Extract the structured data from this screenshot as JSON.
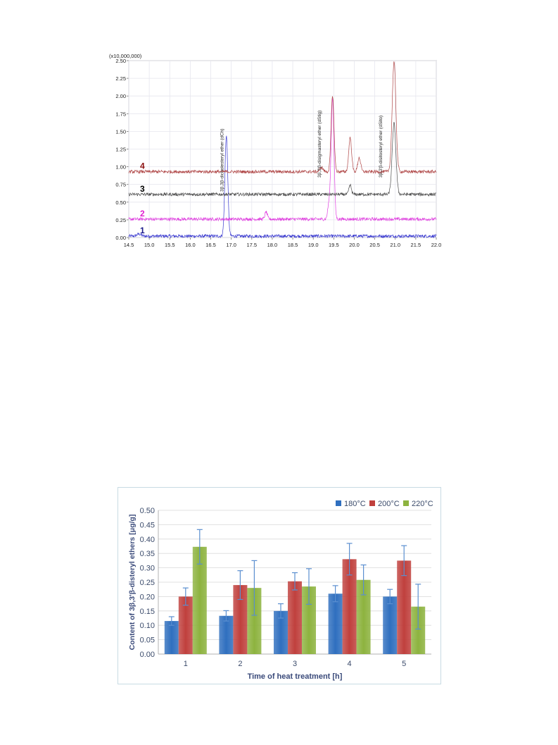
{
  "chart_data": [
    {
      "type": "line",
      "title": "",
      "xlabel": "",
      "ylabel": "",
      "y_multiplier_label": "(x10,000,000)",
      "xlim": [
        14.5,
        22.0
      ],
      "ylim": [
        0.0,
        2.5
      ],
      "x_ticks": [
        "14.5",
        "15.0",
        "15.5",
        "16.0",
        "16.5",
        "17.0",
        "17.5",
        "18.0",
        "18.5",
        "19.0",
        "19.5",
        "20.0",
        "20.5",
        "21.0",
        "21.5",
        "22.0"
      ],
      "y_ticks": [
        "0.00",
        "0.25",
        "0.50",
        "0.75",
        "1.00",
        "1.25",
        "1.50",
        "1.75",
        "2.00",
        "2.25",
        "2.50"
      ],
      "grid": true,
      "series": [
        {
          "name": "1",
          "color": "#3a3ad0",
          "label_color": "#1a1a8a",
          "baseline": 0.02,
          "peaks": [
            {
              "x": 16.88,
              "h": 1.42,
              "w": 0.035
            },
            {
              "x": 14.75,
              "h": 0.03,
              "w": 0.05
            }
          ]
        },
        {
          "name": "2",
          "color": "#e040e0",
          "label_color": "#e020d0",
          "baseline": 0.26,
          "peaks": [
            {
              "x": 17.85,
              "h": 0.1,
              "w": 0.03
            },
            {
              "x": 19.47,
              "h": 1.72,
              "w": 0.035
            },
            {
              "x": 19.38,
              "h": 0.2,
              "w": 0.03
            }
          ]
        },
        {
          "name": "3",
          "color": "#505050",
          "label_color": "#000000",
          "baseline": 0.61,
          "peaks": [
            {
              "x": 19.9,
              "h": 0.13,
              "w": 0.03
            },
            {
              "x": 20.97,
              "h": 1.0,
              "w": 0.045
            }
          ]
        },
        {
          "name": "4",
          "color": "#b04848",
          "label_color": "#8b1010",
          "baseline": 0.93,
          "peaks": [
            {
              "x": 19.2,
              "h": 0.06,
              "w": 0.04
            },
            {
              "x": 19.47,
              "h": 1.08,
              "w": 0.035
            },
            {
              "x": 19.9,
              "h": 0.48,
              "w": 0.035
            },
            {
              "x": 20.12,
              "h": 0.2,
              "w": 0.035
            },
            {
              "x": 20.97,
              "h": 1.55,
              "w": 0.045
            }
          ]
        }
      ],
      "annotations": [
        {
          "text": "3β,3β-dicholesteryl ether (dCh)",
          "x": 16.88
        },
        {
          "text": "3β,3'β-disigmasteryl ether (dStig)",
          "x": 19.25
        },
        {
          "text": "3β,3'β-disitosteryl ether (dSito)",
          "x": 20.75
        }
      ]
    },
    {
      "type": "bar",
      "title": "",
      "xlabel": "Time of heat treatment [h]",
      "ylabel": "Content of 3β,3'β-disteryl ethers [μg/g]",
      "ylim": [
        0.0,
        0.5
      ],
      "y_ticks": [
        "0.00",
        "0.05",
        "0.10",
        "0.15",
        "0.20",
        "0.25",
        "0.30",
        "0.35",
        "0.40",
        "0.45",
        "0.50"
      ],
      "categories": [
        "1",
        "2",
        "3",
        "4",
        "5"
      ],
      "grid": true,
      "legend_position": "top-right",
      "series": [
        {
          "name": "180°C",
          "color": "#2f6fbf",
          "values": [
            0.115,
            0.133,
            0.15,
            0.21,
            0.2
          ],
          "errors": [
            0.015,
            0.018,
            0.025,
            0.028,
            0.025
          ]
        },
        {
          "name": "200°C",
          "color": "#c0403d",
          "values": [
            0.2,
            0.24,
            0.253,
            0.33,
            0.325
          ],
          "errors": [
            0.03,
            0.05,
            0.03,
            0.055,
            0.052
          ]
        },
        {
          "name": "220°C",
          "color": "#8db33f",
          "values": [
            0.373,
            0.23,
            0.235,
            0.258,
            0.165
          ],
          "errors": [
            0.06,
            0.095,
            0.062,
            0.052,
            0.078
          ]
        }
      ]
    }
  ]
}
